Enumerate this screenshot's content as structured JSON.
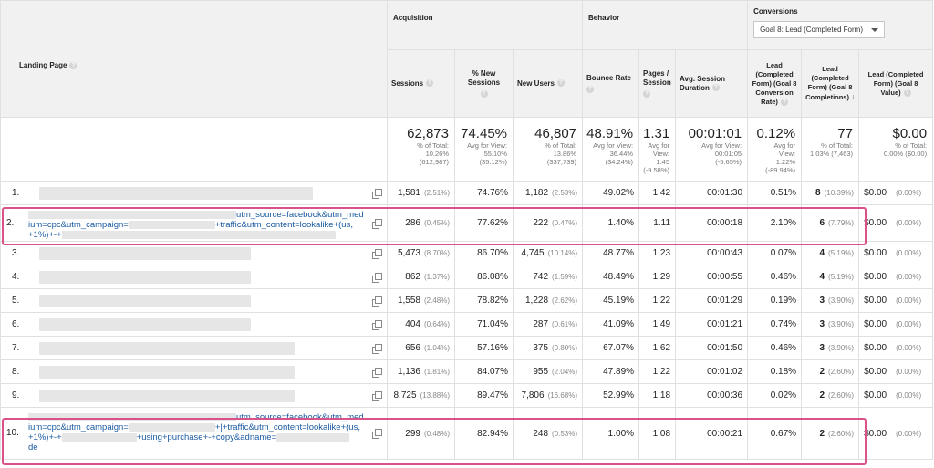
{
  "header": {
    "landing_page": "Landing Page",
    "groups": {
      "acquisition": "Acquisition",
      "behavior": "Behavior",
      "conversions": "Conversions"
    },
    "goal_select": "Goal 8: Lead (Completed Form)",
    "columns": {
      "sessions": "Sessions",
      "new_sessions": "% New Sessions",
      "new_users": "New Users",
      "bounce_rate": "Bounce Rate",
      "pages_session": "Pages / Session",
      "avg_duration": "Avg. Session Duration",
      "conv_rate": "Lead (Completed Form) (Goal 8 Conversion Rate)",
      "completions": "Lead (Completed Form) (Goal 8 Completions)",
      "value": "Lead (Completed Form) (Goal 8 Value)"
    }
  },
  "totals": {
    "sessions": {
      "value": "62,873",
      "l1": "% of Total:",
      "l2": "10.26%",
      "l3": "(612,987)"
    },
    "new_sessions": {
      "value": "74.45%",
      "l1": "Avg for View:",
      "l2": "55.10%",
      "l3": "(35.12%)"
    },
    "new_users": {
      "value": "46,807",
      "l1": "% of Total:",
      "l2": "13.86%",
      "l3": "(337,739)"
    },
    "bounce_rate": {
      "value": "48.91%",
      "l1": "Avg for View:",
      "l2": "36.44%",
      "l3": "(34.24%)"
    },
    "pages_session": {
      "value": "1.31",
      "l1": "Avg for",
      "l2": "View:",
      "l3": "1.45",
      "l4": "(-9.58%)"
    },
    "avg_duration": {
      "value": "00:01:01",
      "l1": "Avg for View:",
      "l2": "00:01:05",
      "l3": "(-5.65%)"
    },
    "conv_rate": {
      "value": "0.12%",
      "l1": "Avg for",
      "l2": "View:",
      "l3": "1.22%",
      "l4": "(-89.94%)"
    },
    "completions": {
      "value": "77",
      "l1": "% of Total:",
      "l2": "1.03% (7,463)"
    },
    "value": {
      "value": "$0.00",
      "l1": "% of Total:",
      "l2": "0.00% ($0.00)"
    }
  },
  "rows": [
    {
      "n": "1.",
      "sessions": "1,581",
      "sessions_pct": "(2.51%)",
      "new_sessions": "74.76%",
      "new_users": "1,182",
      "new_users_pct": "(2.53%)",
      "bounce": "49.02%",
      "pages": "1.42",
      "duration": "00:01:30",
      "conv": "0.51%",
      "comp": "8",
      "comp_pct": "(10.39%)",
      "value": "$0.00",
      "value_pct": "(0.00%)"
    },
    {
      "n": "2.",
      "url1": "utm_source=facebook&utm_med",
      "url2": "ium=cpc&utm_campaign=",
      "url2b": "+traffic&utm_content=lookalike+(us,",
      "url3": "+1%)+-+",
      "sessions": "286",
      "sessions_pct": "(0.45%)",
      "new_sessions": "77.62%",
      "new_users": "222",
      "new_users_pct": "(0.47%)",
      "bounce": "1.40%",
      "pages": "1.11",
      "duration": "00:00:18",
      "conv": "2.10%",
      "comp": "6",
      "comp_pct": "(7.79%)",
      "value": "$0.00",
      "value_pct": "(0.00%)"
    },
    {
      "n": "3.",
      "sessions": "5,473",
      "sessions_pct": "(8.70%)",
      "new_sessions": "86.70%",
      "new_users": "4,745",
      "new_users_pct": "(10.14%)",
      "bounce": "48.77%",
      "pages": "1.23",
      "duration": "00:00:43",
      "conv": "0.07%",
      "comp": "4",
      "comp_pct": "(5.19%)",
      "value": "$0.00",
      "value_pct": "(0.00%)"
    },
    {
      "n": "4.",
      "sessions": "862",
      "sessions_pct": "(1.37%)",
      "new_sessions": "86.08%",
      "new_users": "742",
      "new_users_pct": "(1.59%)",
      "bounce": "48.49%",
      "pages": "1.29",
      "duration": "00:00:55",
      "conv": "0.46%",
      "comp": "4",
      "comp_pct": "(5.19%)",
      "value": "$0.00",
      "value_pct": "(0.00%)"
    },
    {
      "n": "5.",
      "sessions": "1,558",
      "sessions_pct": "(2.48%)",
      "new_sessions": "78.82%",
      "new_users": "1,228",
      "new_users_pct": "(2.62%)",
      "bounce": "45.19%",
      "pages": "1.22",
      "duration": "00:01:29",
      "conv": "0.19%",
      "comp": "3",
      "comp_pct": "(3.90%)",
      "value": "$0.00",
      "value_pct": "(0.00%)"
    },
    {
      "n": "6.",
      "sessions": "404",
      "sessions_pct": "(0.64%)",
      "new_sessions": "71.04%",
      "new_users": "287",
      "new_users_pct": "(0.61%)",
      "bounce": "41.09%",
      "pages": "1.49",
      "duration": "00:01:21",
      "conv": "0.74%",
      "comp": "3",
      "comp_pct": "(3.90%)",
      "value": "$0.00",
      "value_pct": "(0.00%)"
    },
    {
      "n": "7.",
      "sessions": "656",
      "sessions_pct": "(1.04%)",
      "new_sessions": "57.16%",
      "new_users": "375",
      "new_users_pct": "(0.80%)",
      "bounce": "67.07%",
      "pages": "1.62",
      "duration": "00:01:50",
      "conv": "0.46%",
      "comp": "3",
      "comp_pct": "(3.90%)",
      "value": "$0.00",
      "value_pct": "(0.00%)"
    },
    {
      "n": "8.",
      "sessions": "1,136",
      "sessions_pct": "(1.81%)",
      "new_sessions": "84.07%",
      "new_users": "955",
      "new_users_pct": "(2.04%)",
      "bounce": "47.89%",
      "pages": "1.22",
      "duration": "00:01:02",
      "conv": "0.18%",
      "comp": "2",
      "comp_pct": "(2.60%)",
      "value": "$0.00",
      "value_pct": "(0.00%)"
    },
    {
      "n": "9.",
      "sessions": "8,725",
      "sessions_pct": "(13.88%)",
      "new_sessions": "89.47%",
      "new_users": "7,806",
      "new_users_pct": "(16.68%)",
      "bounce": "52.99%",
      "pages": "1.18",
      "duration": "00:00:36",
      "conv": "0.02%",
      "comp": "2",
      "comp_pct": "(2.60%)",
      "value": "$0.00",
      "value_pct": "(0.00%)"
    },
    {
      "n": "10.",
      "url1": "utm_source=facebook&utm_med",
      "url2": "ium=cpc&utm_campaign=",
      "url2b": "+|+traffic&utm_content=lookalike+(us,",
      "url3": "+1%)+-+",
      "url3b": "+using+purchase+-+copy&adname=",
      "url4": "de",
      "sessions": "299",
      "sessions_pct": "(0.48%)",
      "new_sessions": "82.94%",
      "new_users": "248",
      "new_users_pct": "(0.53%)",
      "bounce": "1.00%",
      "pages": "1.08",
      "duration": "00:00:21",
      "conv": "0.67%",
      "comp": "2",
      "comp_pct": "(2.60%)",
      "value": "$0.00",
      "value_pct": "(0.00%)"
    }
  ]
}
